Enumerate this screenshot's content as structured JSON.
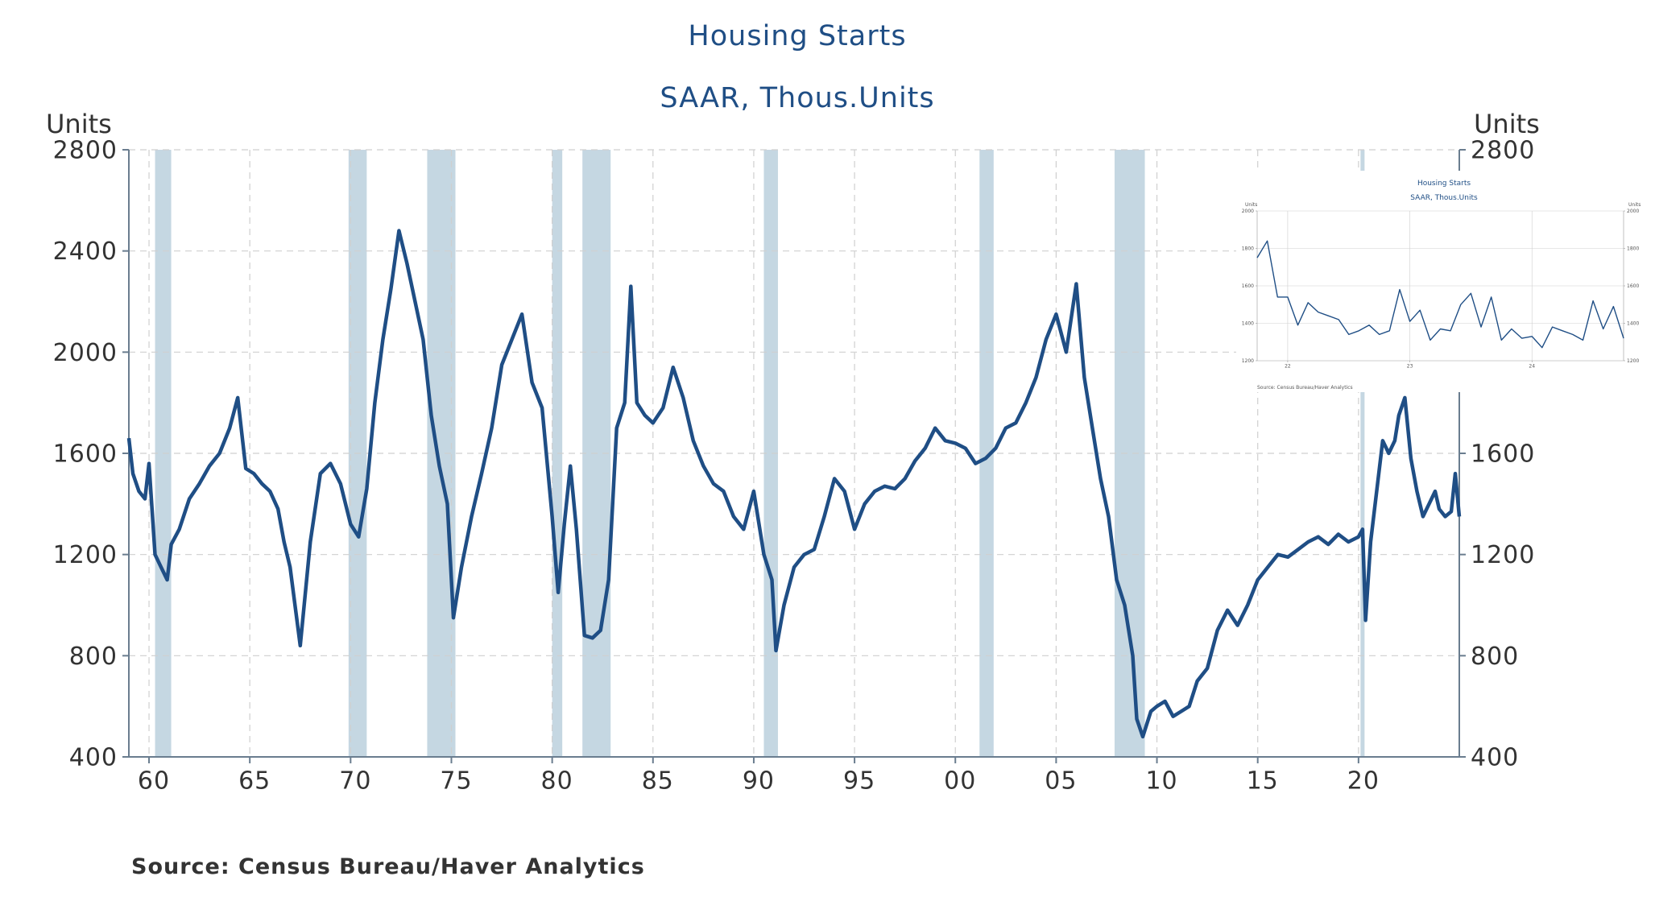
{
  "chart_data": [
    {
      "type": "line",
      "title": "Housing Starts",
      "subtitle": "SAAR, Thous.Units",
      "ylabel_left": "Units",
      "ylabel_right": "Units",
      "source": "Source:  Census Bureau/Haver Analytics",
      "xlim": [
        1959,
        2025
      ],
      "ylim": [
        400,
        2800
      ],
      "y_ticks": [
        400,
        800,
        1200,
        1600,
        2000,
        2400,
        2800
      ],
      "y_tick_labels": [
        "400",
        "800",
        "1200",
        "1600",
        "2000",
        "2400",
        "2800"
      ],
      "x_ticks": [
        1960,
        1965,
        1970,
        1975,
        1980,
        1985,
        1990,
        1995,
        2000,
        2005,
        2010,
        2015,
        2020
      ],
      "x_tick_labels": [
        "60",
        "65",
        "70",
        "75",
        "80",
        "85",
        "90",
        "95",
        "00",
        "05",
        "10",
        "15",
        "20"
      ],
      "grid": true,
      "line_color": "#1f4e85",
      "recession_color": "#c5d7e2",
      "recessions": [
        [
          1960.3,
          1961.1
        ],
        [
          1969.9,
          1970.8
        ],
        [
          1973.8,
          1975.2
        ],
        [
          1980.0,
          1980.5
        ],
        [
          1981.5,
          1982.9
        ],
        [
          1990.5,
          1991.2
        ],
        [
          2001.2,
          2001.9
        ],
        [
          2007.9,
          2009.4
        ],
        [
          2020.1,
          2020.3
        ]
      ],
      "series": [
        {
          "x": [
            1959.0,
            1959.2,
            1959.5,
            1959.8,
            1960.0,
            1960.3,
            1960.6,
            1960.9,
            1961.1,
            1961.5,
            1962.0,
            1962.5,
            1963.0,
            1963.5,
            1964.0,
            1964.4,
            1964.8,
            1965.2,
            1965.6,
            1966.0,
            1966.4,
            1966.7,
            1967.0,
            1967.5,
            1968.0,
            1968.5,
            1969.0,
            1969.5,
            1970.0,
            1970.4,
            1970.8,
            1971.2,
            1971.6,
            1972.0,
            1972.4,
            1972.8,
            1973.2,
            1973.6,
            1974.0,
            1974.4,
            1974.8,
            1975.1,
            1975.5,
            1976.0,
            1976.5,
            1977.0,
            1977.5,
            1978.0,
            1978.5,
            1979.0,
            1979.5,
            1980.0,
            1980.3,
            1980.6,
            1980.9,
            1981.2,
            1981.6,
            1982.0,
            1982.4,
            1982.8,
            1983.2,
            1983.6,
            1983.9,
            1984.2,
            1984.6,
            1985.0,
            1985.5,
            1986.0,
            1986.5,
            1987.0,
            1987.5,
            1988.0,
            1988.5,
            1989.0,
            1989.5,
            1990.0,
            1990.5,
            1990.9,
            1991.1,
            1991.5,
            1992.0,
            1992.5,
            1993.0,
            1993.5,
            1994.0,
            1994.5,
            1995.0,
            1995.5,
            1996.0,
            1996.5,
            1997.0,
            1997.5,
            1998.0,
            1998.5,
            1999.0,
            1999.5,
            2000.0,
            2000.5,
            2001.0,
            2001.5,
            2002.0,
            2002.5,
            2003.0,
            2003.5,
            2004.0,
            2004.5,
            2005.0,
            2005.5,
            2006.0,
            2006.4,
            2006.8,
            2007.2,
            2007.6,
            2008.0,
            2008.4,
            2008.8,
            2009.0,
            2009.3,
            2009.7,
            2010.0,
            2010.4,
            2010.8,
            2011.2,
            2011.6,
            2012.0,
            2012.5,
            2013.0,
            2013.5,
            2014.0,
            2014.5,
            2015.0,
            2015.5,
            2016.0,
            2016.5,
            2017.0,
            2017.5,
            2018.0,
            2018.5,
            2019.0,
            2019.5,
            2020.0,
            2020.2,
            2020.35,
            2020.6,
            2020.9,
            2021.2,
            2021.5,
            2021.8,
            2022.0,
            2022.3,
            2022.6,
            2022.9,
            2023.2,
            2023.5,
            2023.8,
            2024.0,
            2024.3,
            2024.6,
            2024.8,
            2025.0
          ],
          "y": [
            1660,
            1520,
            1450,
            1420,
            1560,
            1200,
            1150,
            1100,
            1240,
            1300,
            1420,
            1480,
            1550,
            1600,
            1700,
            1820,
            1540,
            1520,
            1480,
            1450,
            1380,
            1250,
            1150,
            840,
            1250,
            1520,
            1560,
            1480,
            1320,
            1270,
            1460,
            1800,
            2050,
            2250,
            2480,
            2350,
            2200,
            2050,
            1750,
            1550,
            1400,
            950,
            1150,
            1350,
            1520,
            1700,
            1950,
            2050,
            2150,
            1880,
            1780,
            1350,
            1050,
            1320,
            1550,
            1300,
            880,
            870,
            900,
            1100,
            1700,
            1800,
            2260,
            1800,
            1750,
            1720,
            1780,
            1940,
            1820,
            1650,
            1550,
            1480,
            1450,
            1350,
            1300,
            1450,
            1200,
            1100,
            820,
            1000,
            1150,
            1200,
            1220,
            1350,
            1500,
            1450,
            1300,
            1400,
            1450,
            1470,
            1460,
            1500,
            1570,
            1620,
            1700,
            1650,
            1640,
            1620,
            1560,
            1580,
            1620,
            1700,
            1720,
            1800,
            1900,
            2050,
            2150,
            2000,
            2270,
            1900,
            1700,
            1500,
            1350,
            1100,
            1000,
            800,
            550,
            480,
            580,
            600,
            620,
            560,
            580,
            600,
            700,
            750,
            900,
            980,
            920,
            1000,
            1100,
            1150,
            1200,
            1190,
            1220,
            1250,
            1270,
            1240,
            1280,
            1250,
            1270,
            1300,
            940,
            1250,
            1450,
            1650,
            1600,
            1650,
            1750,
            1820,
            1580,
            1450,
            1350,
            1400,
            1450,
            1380,
            1350,
            1370,
            1520,
            1350
          ]
        }
      ]
    },
    {
      "type": "line",
      "title": "Housing Starts",
      "subtitle": "SAAR, Thous.Units",
      "ylabel_left": "Units",
      "ylabel_right": "Units",
      "source": "Source: Census Bureau/Haver Analytics",
      "xlim": [
        2021.75,
        2024.75
      ],
      "ylim": [
        1200,
        2000
      ],
      "y_ticks": [
        1200,
        1400,
        1600,
        1800,
        2000
      ],
      "y_tick_labels": [
        "1200",
        "1400",
        "1600",
        "1800",
        "2000"
      ],
      "x_ticks": [
        2022,
        2023,
        2024
      ],
      "x_tick_labels": [
        "22",
        "23",
        "24"
      ],
      "grid": true,
      "series": [
        {
          "x": [
            2021.75,
            2021.833,
            2021.917,
            2022.0,
            2022.083,
            2022.167,
            2022.25,
            2022.333,
            2022.417,
            2022.5,
            2022.583,
            2022.667,
            2022.75,
            2022.833,
            2022.917,
            2023.0,
            2023.083,
            2023.167,
            2023.25,
            2023.333,
            2023.417,
            2023.5,
            2023.583,
            2023.667,
            2023.75,
            2023.833,
            2023.917,
            2024.0,
            2024.083,
            2024.167,
            2024.25,
            2024.333,
            2024.417,
            2024.5,
            2024.583,
            2024.667,
            2024.75
          ],
          "y": [
            1750,
            1840,
            1540,
            1540,
            1390,
            1510,
            1460,
            1440,
            1420,
            1340,
            1360,
            1390,
            1340,
            1360,
            1580,
            1410,
            1470,
            1310,
            1370,
            1360,
            1500,
            1560,
            1380,
            1540,
            1310,
            1370,
            1320,
            1330,
            1270,
            1380,
            1360,
            1340,
            1310,
            1520,
            1370,
            1490,
            1320
          ]
        }
      ]
    }
  ]
}
